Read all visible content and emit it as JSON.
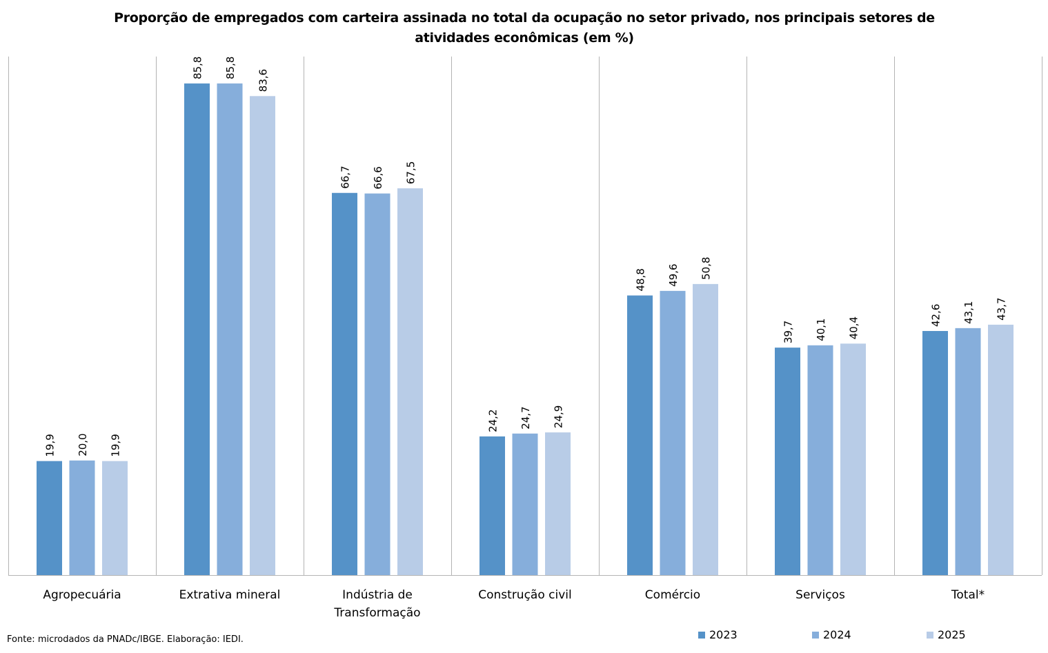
{
  "chart_data": {
    "type": "bar",
    "title": "Proporção de empregados com carteira assinada no total da ocupação no setor privado, nos principais setores de atividades econômicas (em %)",
    "categories": [
      "Agropecuária",
      "Extrativa mineral",
      "Indústria de Transformação",
      "Construção civil",
      "Comércio",
      "Serviços",
      "Total*"
    ],
    "category_lines": [
      [
        "Agropecuária"
      ],
      [
        "Extrativa mineral"
      ],
      [
        "Indústria de",
        "Transformação"
      ],
      [
        "Construção civil"
      ],
      [
        "Comércio"
      ],
      [
        "Serviços"
      ],
      [
        "Total*"
      ]
    ],
    "series": [
      {
        "name": "2023",
        "color": "#5592C8",
        "values": [
          19.9,
          85.8,
          66.7,
          24.2,
          48.8,
          39.7,
          42.6
        ],
        "labels": [
          "19,9",
          "85,8",
          "66,7",
          "24,2",
          "48,8",
          "39,7",
          "42,6"
        ]
      },
      {
        "name": "2024",
        "color": "#86AEDB",
        "values": [
          20.0,
          85.8,
          66.6,
          24.7,
          49.6,
          40.1,
          43.1
        ],
        "labels": [
          "20,0",
          "85,8",
          "66,6",
          "24,7",
          "49,6",
          "40,1",
          "43,1"
        ]
      },
      {
        "name": "2025",
        "color": "#B8CCE7",
        "values": [
          19.9,
          83.6,
          67.5,
          24.9,
          50.8,
          40.4,
          43.7
        ],
        "labels": [
          "19,9",
          "83,6",
          "67,5",
          "24,9",
          "50,8",
          "40,4",
          "43,7"
        ]
      }
    ],
    "xlabel": "",
    "ylabel": "",
    "ylim": [
      0,
      90.5
    ],
    "grid": false,
    "legend": "bottom-right"
  },
  "source": "Fonte: microdados da PNADc/IBGE. Elaboração: IEDI."
}
